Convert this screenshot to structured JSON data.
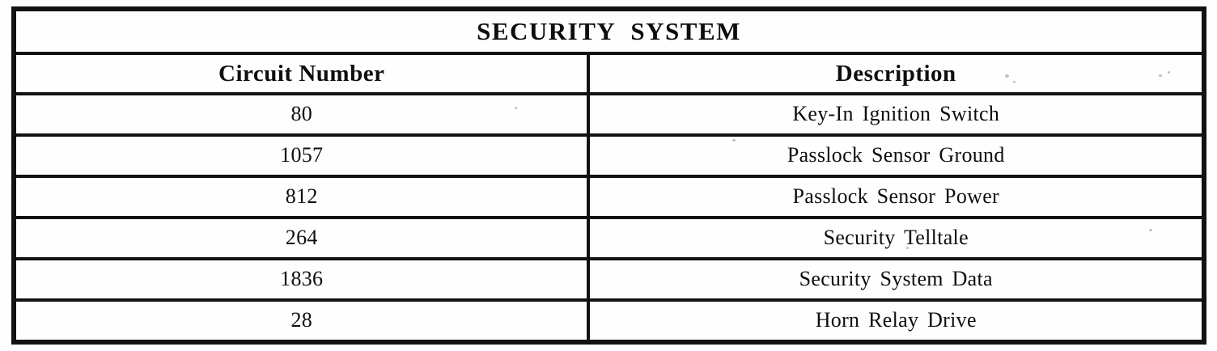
{
  "table": {
    "title": "SECURITY SYSTEM",
    "columns": {
      "circuit": "Circuit Number",
      "description": "Description"
    },
    "rows": [
      {
        "circuit": "80",
        "description": "Key-In Ignition Switch"
      },
      {
        "circuit": "1057",
        "description": "Passlock Sensor Ground"
      },
      {
        "circuit": "812",
        "description": "Passlock Sensor Power"
      },
      {
        "circuit": "264",
        "description": "Security Telltale"
      },
      {
        "circuit": "1836",
        "description": "Security System Data"
      },
      {
        "circuit": "28",
        "description": "Horn Relay Drive"
      }
    ]
  },
  "colors": {
    "border": "#121212",
    "text": "#0e0e0e",
    "background": "#fefefe"
  }
}
